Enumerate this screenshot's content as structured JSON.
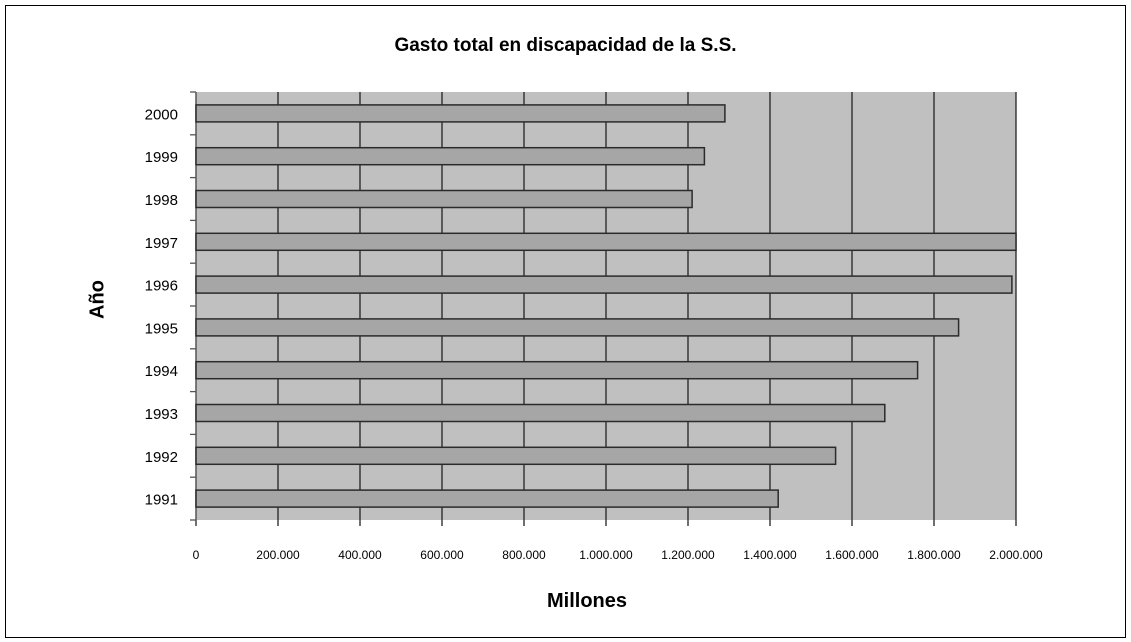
{
  "chart_data": {
    "type": "bar",
    "orientation": "horizontal",
    "title": "Gasto total en discapacidad de la S.S.",
    "xlabel": "Millones",
    "ylabel": "Año",
    "categories": [
      "2000",
      "1999",
      "1998",
      "1997",
      "1996",
      "1995",
      "1994",
      "1993",
      "1992",
      "1991"
    ],
    "values": [
      1290000,
      1240000,
      1210000,
      2000000,
      1990000,
      1860000,
      1760000,
      1680000,
      1560000,
      1420000
    ],
    "xlim": [
      0,
      2000000
    ],
    "xticks": [
      0,
      200000,
      400000,
      600000,
      800000,
      1000000,
      1200000,
      1400000,
      1600000,
      1800000,
      2000000
    ],
    "xtick_labels": [
      "0",
      "200.000",
      "400.000",
      "600.000",
      "800.000",
      "1.000.000",
      "1.200.000",
      "1.400.000",
      "1.600.000",
      "1.800.000",
      "2.000.000"
    ],
    "grid": "vertical",
    "legend": "none",
    "colors": {
      "plot_background": "#c0c0c0",
      "bar_fill": "#a6a6a6",
      "bar_stroke": "#2b2b2b",
      "grid": "#222222"
    }
  }
}
